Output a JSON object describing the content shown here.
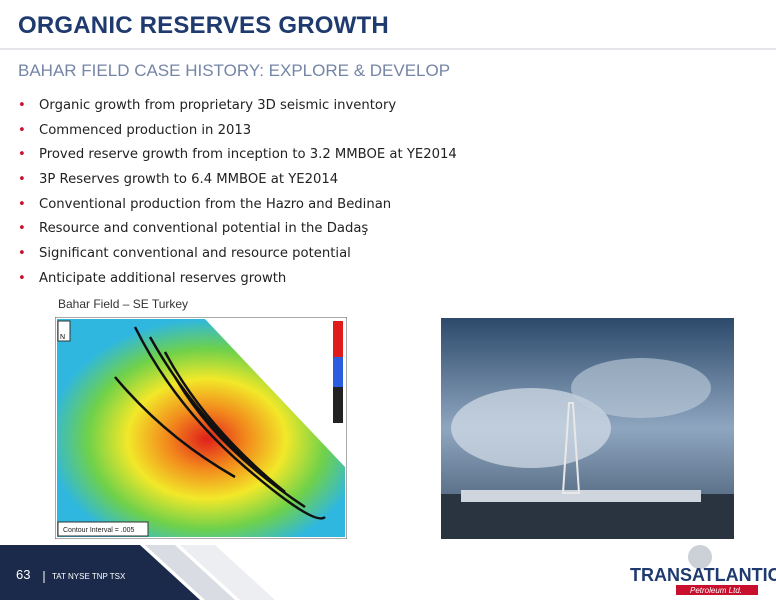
{
  "header": {
    "title": "ORGANIC RESERVES GROWTH",
    "subtitle": "BAHAR FIELD CASE HISTORY: EXPLORE & DEVELOP"
  },
  "bullets": [
    "Organic growth from proprietary 3D seismic inventory",
    "Commenced production in 2013",
    "Proved reserve growth from inception to 3.2 MMBOE at YE2014",
    "3P Reserves growth to 6.4 MMBOE at YE2014",
    "Conventional production from the Hazro and Bedinan",
    "Resource and conventional potential in the Dadaş",
    "Significant conventional and resource potential",
    "Anticipate additional reserves growth"
  ],
  "map": {
    "caption": "Bahar Field – SE Turkey",
    "contour_label": "Contour Interval = .005",
    "north": "N"
  },
  "footer": {
    "page": "63",
    "tickers": "TAT NYSE  TNP TSX",
    "logo": "TRANSATLANTIC",
    "logo_sub": "Petroleum Ltd."
  }
}
